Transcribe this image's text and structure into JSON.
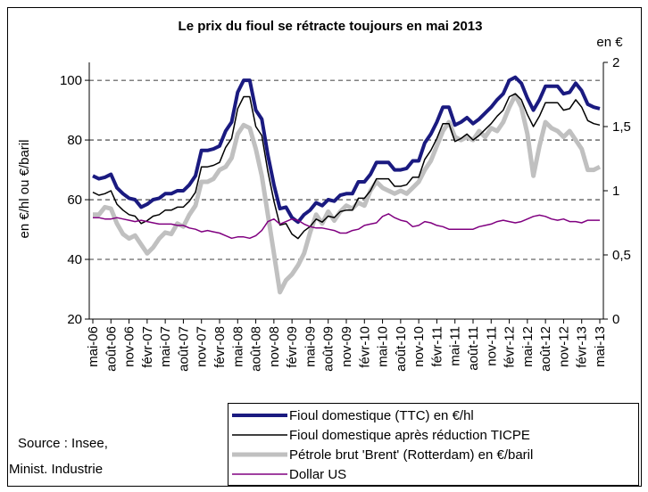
{
  "chart_data": {
    "type": "line",
    "title": "Le prix du fioul se rétracte toujours en mai 2013",
    "y_label": "en €/hl ou €/baril",
    "y2_label": "en €",
    "source": [
      "Source : Insee,",
      "Minist. Industrie"
    ],
    "categories": [
      "mai-06",
      null,
      null,
      "août-06",
      null,
      null,
      "nov-06",
      null,
      null,
      "févr-07",
      null,
      null,
      "mai-07",
      null,
      null,
      "août-07",
      null,
      null,
      "nov-07",
      null,
      null,
      "févr-08",
      null,
      null,
      "mai-08",
      null,
      null,
      "août-08",
      null,
      null,
      "nov-08",
      null,
      null,
      "févr-09",
      null,
      null,
      "mai-09",
      null,
      null,
      "août-09",
      null,
      null,
      "nov-09",
      null,
      null,
      "févr-10",
      null,
      null,
      "mai-10",
      null,
      null,
      "août-10",
      null,
      null,
      "nov-10",
      null,
      null,
      "févr-11",
      null,
      null,
      "mai-11",
      null,
      null,
      "août-11",
      null,
      null,
      "nov-11",
      null,
      null,
      "févr-12",
      null,
      null,
      "mai-12",
      null,
      null,
      "août-12",
      null,
      null,
      "nov-12",
      null,
      null,
      "févr-13",
      null,
      null,
      "mai-13"
    ],
    "ylim": [
      20,
      106
    ],
    "yticks": [
      20,
      40,
      60,
      80,
      100
    ],
    "y2lim": [
      0,
      2
    ],
    "y2ticks": [
      0,
      {
        "value": 0.5,
        "label": "0,5"
      },
      1,
      {
        "value": 1.5,
        "label": "1,5"
      },
      2
    ],
    "grid": true,
    "series": [
      {
        "name": "Fioul domestique (TTC) en €/hl",
        "color": "#1a1a80",
        "values": [
          68,
          67,
          67.5,
          68.5,
          64,
          62,
          60.5,
          60,
          57.5,
          58.5,
          60,
          60.5,
          62,
          62,
          63,
          63,
          65,
          68,
          76.5,
          76.5,
          77,
          78,
          83,
          86,
          96,
          100,
          100,
          90,
          87,
          75,
          65,
          57,
          57.5,
          54,
          52.5,
          55,
          56.5,
          59,
          58,
          60,
          59.5,
          61.5,
          62,
          62,
          66,
          66,
          68.5,
          72.5,
          72.5,
          72.5,
          70,
          70,
          70.5,
          73,
          73,
          79,
          82,
          86,
          91,
          91,
          85,
          86,
          87.5,
          85.5,
          87,
          89,
          91,
          93.5,
          95.5,
          100,
          101,
          99,
          94,
          90,
          93.5,
          98,
          98,
          98,
          95.5,
          96,
          99,
          96.5,
          92,
          91,
          90.5
        ]
      },
      {
        "name": "Fioul domestique après réduction TICPE",
        "color": "#000000",
        "values": [
          62.5,
          61.5,
          62,
          63,
          58.5,
          56.5,
          55,
          54.5,
          52,
          53,
          54.5,
          55,
          56.5,
          56.5,
          57.5,
          57.5,
          59.5,
          62.5,
          71,
          71,
          71.5,
          72.5,
          77.5,
          80.5,
          90.5,
          94.5,
          94.5,
          84.5,
          81.5,
          69.5,
          59.5,
          51.5,
          52,
          48.5,
          47,
          49.5,
          51,
          53.5,
          52.5,
          54.5,
          54,
          56,
          56.5,
          56.5,
          60.5,
          60.5,
          63,
          67,
          67,
          67,
          64.5,
          64.5,
          65,
          67.5,
          67.5,
          73.5,
          76.5,
          80.5,
          85.5,
          85.5,
          79.5,
          80.5,
          82,
          80,
          81.5,
          83.5,
          85.5,
          88,
          90,
          94.5,
          95.5,
          93.5,
          88.5,
          84.5,
          88,
          92.5,
          92.5,
          92.5,
          90,
          90.5,
          93.5,
          91,
          86.5,
          85.5,
          85
        ]
      },
      {
        "name": "Pétrole brut 'Brent' (Rotterdam) en €/baril",
        "color": "#c0c0c0",
        "values": [
          55,
          55,
          57.5,
          57,
          52,
          48.5,
          47,
          48,
          45,
          42,
          44,
          47,
          49,
          48.5,
          52,
          51,
          55,
          58,
          66,
          66,
          67,
          70,
          71,
          74,
          82,
          85,
          84,
          77,
          68,
          55,
          42,
          29,
          33,
          35,
          38,
          42,
          49,
          55,
          52,
          56,
          53,
          56,
          58,
          57,
          59,
          58,
          63,
          66,
          64,
          63,
          62,
          63,
          62,
          64,
          66,
          70,
          73,
          78,
          83,
          86,
          81,
          80,
          81,
          80,
          83,
          81,
          84,
          83,
          86,
          91,
          95,
          91,
          82,
          68,
          78,
          86,
          84,
          83,
          81,
          83,
          80,
          77,
          70,
          70,
          71
        ]
      },
      {
        "name": "Dollar US",
        "color": "#800080",
        "axis": "y2",
        "values": [
          0.79,
          0.79,
          0.78,
          0.78,
          0.79,
          0.78,
          0.77,
          0.76,
          0.77,
          0.76,
          0.75,
          0.74,
          0.74,
          0.74,
          0.73,
          0.73,
          0.71,
          0.7,
          0.68,
          0.69,
          0.68,
          0.67,
          0.65,
          0.63,
          0.64,
          0.64,
          0.63,
          0.65,
          0.69,
          0.76,
          0.78,
          0.74,
          0.76,
          0.78,
          0.77,
          0.74,
          0.72,
          0.71,
          0.71,
          0.7,
          0.69,
          0.67,
          0.67,
          0.69,
          0.7,
          0.73,
          0.74,
          0.75,
          0.8,
          0.82,
          0.79,
          0.77,
          0.76,
          0.72,
          0.73,
          0.76,
          0.75,
          0.73,
          0.72,
          0.7,
          0.7,
          0.7,
          0.7,
          0.7,
          0.72,
          0.73,
          0.74,
          0.76,
          0.77,
          0.76,
          0.75,
          0.76,
          0.78,
          0.8,
          0.81,
          0.8,
          0.78,
          0.77,
          0.78,
          0.76,
          0.76,
          0.75,
          0.77,
          0.77,
          0.77
        ]
      }
    ]
  }
}
